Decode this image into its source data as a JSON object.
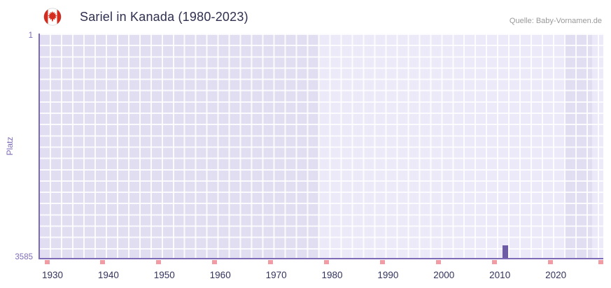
{
  "header": {
    "title": "Sariel in Kanada (1980-2023)",
    "source": "Quelle: Baby-Vornamen.de",
    "flag_icon": "canada-flag"
  },
  "chart_data": {
    "type": "bar",
    "title": "Sariel in Kanada (1980-2023)",
    "xlabel": "",
    "ylabel": "Platz",
    "legend": "none",
    "grid": true,
    "y_axis_inverted": true,
    "y_ticks": [
      1,
      3585
    ],
    "x_ticks": [
      1930,
      1940,
      1950,
      1960,
      1970,
      1980,
      1990,
      2000,
      2010,
      2020
    ],
    "x_range": [
      1927.5,
      2028.5
    ],
    "y_range": [
      1,
      3585
    ],
    "series": [
      {
        "name": "Platz",
        "points": [
          {
            "year": 2011,
            "rank": 3385
          }
        ]
      }
    ],
    "bg_bands": [
      {
        "from": 1927.5,
        "to": 1977.5,
        "shade": "dark"
      },
      {
        "from": 1977.5,
        "to": 2021.5,
        "shade": "light"
      },
      {
        "from": 2021.5,
        "to": 2026.5,
        "shade": "dark"
      },
      {
        "from": 2026.5,
        "to": 2028.5,
        "shade": "light"
      }
    ],
    "axis_marker_years": [
      1929,
      1939,
      1949,
      1959,
      1969,
      1979,
      1989,
      1999,
      2009,
      2019,
      2028
    ],
    "colors": {
      "bar": "#6E5BA6",
      "axis": "#7E6BB8",
      "axis_label": "#7E6BB8",
      "tick_label": "#33335C",
      "plot_bg_dark": "#E2DEF1",
      "plot_bg_light": "#ECEAF8",
      "grid": "#FFFFFF",
      "marker": "#F09CA4",
      "title": "#2F2F4F",
      "source": "#999999",
      "flag_red": "#D52B1E"
    }
  }
}
